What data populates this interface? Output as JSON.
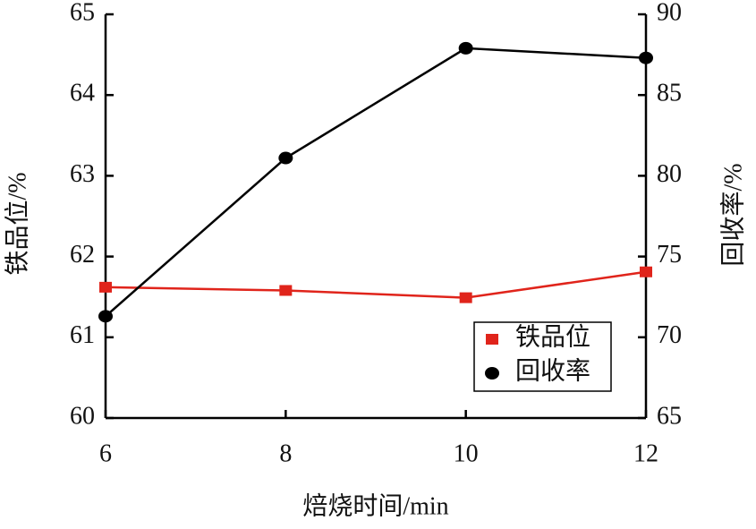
{
  "chart_data": {
    "type": "line",
    "x": [
      6,
      8,
      10,
      12
    ],
    "xlim": [
      6,
      12
    ],
    "xticks": [
      6,
      8,
      10,
      12
    ],
    "ylim": [
      60,
      65
    ],
    "yticks": [
      60,
      61,
      62,
      63,
      64,
      65
    ],
    "y2lim": [
      65,
      90
    ],
    "y2ticks": [
      65,
      70,
      75,
      80,
      85,
      90
    ],
    "x_label": "焙烧时间/min",
    "y_label": "铁品位/%",
    "y2_label": "回收率/%",
    "legend": "lower right",
    "series": [
      {
        "name": "铁品位",
        "color": "#e0241b",
        "marker": "square",
        "values": [
          61.62,
          61.58,
          61.49,
          61.81
        ]
      },
      {
        "name": "回收率",
        "color": "#000000",
        "marker": "circle",
        "axis": "y2",
        "values": [
          71.3,
          81.1,
          87.9,
          87.3
        ]
      }
    ]
  }
}
